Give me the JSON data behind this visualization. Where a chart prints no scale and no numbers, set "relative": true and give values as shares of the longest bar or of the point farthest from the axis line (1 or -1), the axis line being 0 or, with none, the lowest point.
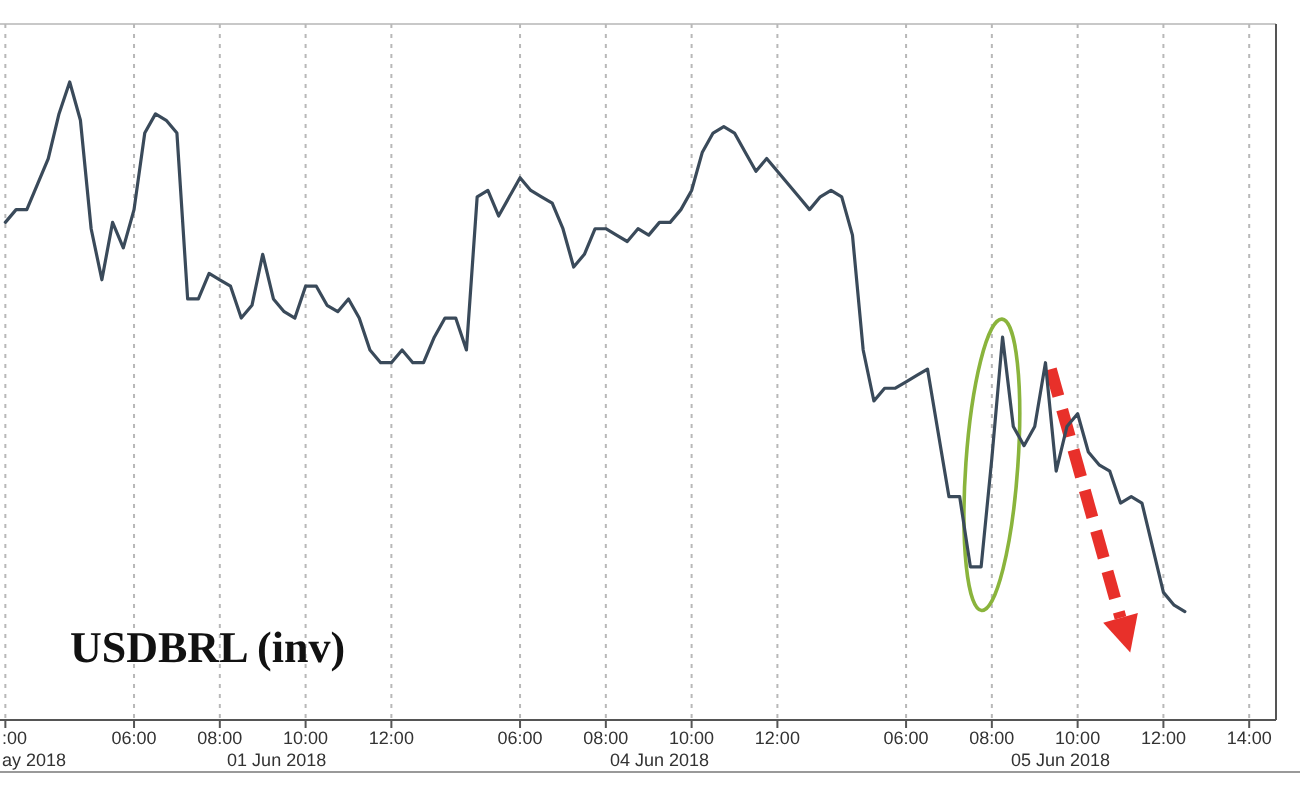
{
  "chart_data": {
    "type": "line",
    "title": "USDBRL (inv)",
    "relative": true,
    "grid": "x",
    "color": "#3a4a5a",
    "categories": [
      ":00",
      null,
      null,
      null,
      null,
      null,
      null,
      null,
      null,
      null,
      null,
      null,
      "06:00",
      null,
      null,
      null,
      null,
      null,
      null,
      null,
      "08:00",
      null,
      null,
      null,
      null,
      null,
      null,
      null,
      "10:00",
      null,
      null,
      null,
      null,
      null,
      null,
      null,
      "12:00",
      null,
      null,
      null,
      null,
      null,
      null,
      null,
      null,
      null,
      null,
      null,
      "06:00",
      null,
      null,
      null,
      null,
      null,
      null,
      null,
      "08:00",
      null,
      null,
      null,
      null,
      null,
      null,
      null,
      "10:00",
      null,
      null,
      null,
      null,
      null,
      null,
      null,
      "12:00",
      null,
      null,
      null,
      null,
      null,
      null,
      null,
      null,
      null,
      null,
      null,
      "06:00",
      null,
      null,
      null,
      null,
      null,
      null,
      null,
      "08:00",
      null,
      null,
      null,
      null,
      null,
      null,
      null,
      "10:00",
      null,
      null,
      null,
      null,
      null,
      null,
      null,
      "12:00",
      null,
      null,
      null,
      null,
      null,
      null,
      null,
      "14:00",
      null,
      null
    ],
    "values": [
      0.78,
      0.8,
      0.8,
      0.84,
      0.88,
      0.95,
      1.0,
      0.94,
      0.77,
      0.69,
      0.78,
      0.74,
      0.8,
      0.92,
      0.95,
      0.94,
      0.92,
      0.66,
      0.66,
      0.7,
      0.69,
      0.68,
      0.63,
      0.65,
      0.73,
      0.66,
      0.64,
      0.63,
      0.68,
      0.68,
      0.65,
      0.64,
      0.66,
      0.63,
      0.58,
      0.56,
      0.56,
      0.58,
      0.56,
      0.56,
      0.6,
      0.63,
      0.63,
      0.58,
      0.82,
      0.83,
      0.79,
      0.82,
      0.85,
      0.83,
      0.82,
      0.81,
      0.77,
      0.71,
      0.73,
      0.77,
      0.77,
      0.76,
      0.75,
      0.77,
      0.76,
      0.78,
      0.78,
      0.8,
      0.83,
      0.89,
      0.92,
      0.93,
      0.92,
      0.89,
      0.86,
      0.88,
      0.86,
      0.84,
      0.82,
      0.8,
      0.82,
      0.83,
      0.82,
      0.76,
      0.58,
      0.5,
      0.52,
      0.52,
      0.53,
      0.54,
      0.55,
      0.45,
      0.35,
      0.35,
      0.24,
      0.24,
      0.41,
      0.6,
      0.46,
      0.43,
      0.46,
      0.56,
      0.39,
      0.46,
      0.48,
      0.42,
      0.4,
      0.39,
      0.34,
      0.35,
      0.34,
      0.27,
      0.2,
      0.18,
      0.17,
      null,
      null,
      null,
      null,
      null,
      null,
      null,
      null
    ],
    "annotations": [
      "ay 2018",
      "01 Jun 2018",
      "04 Jun 2018",
      "05 Jun 2018"
    ]
  }
}
